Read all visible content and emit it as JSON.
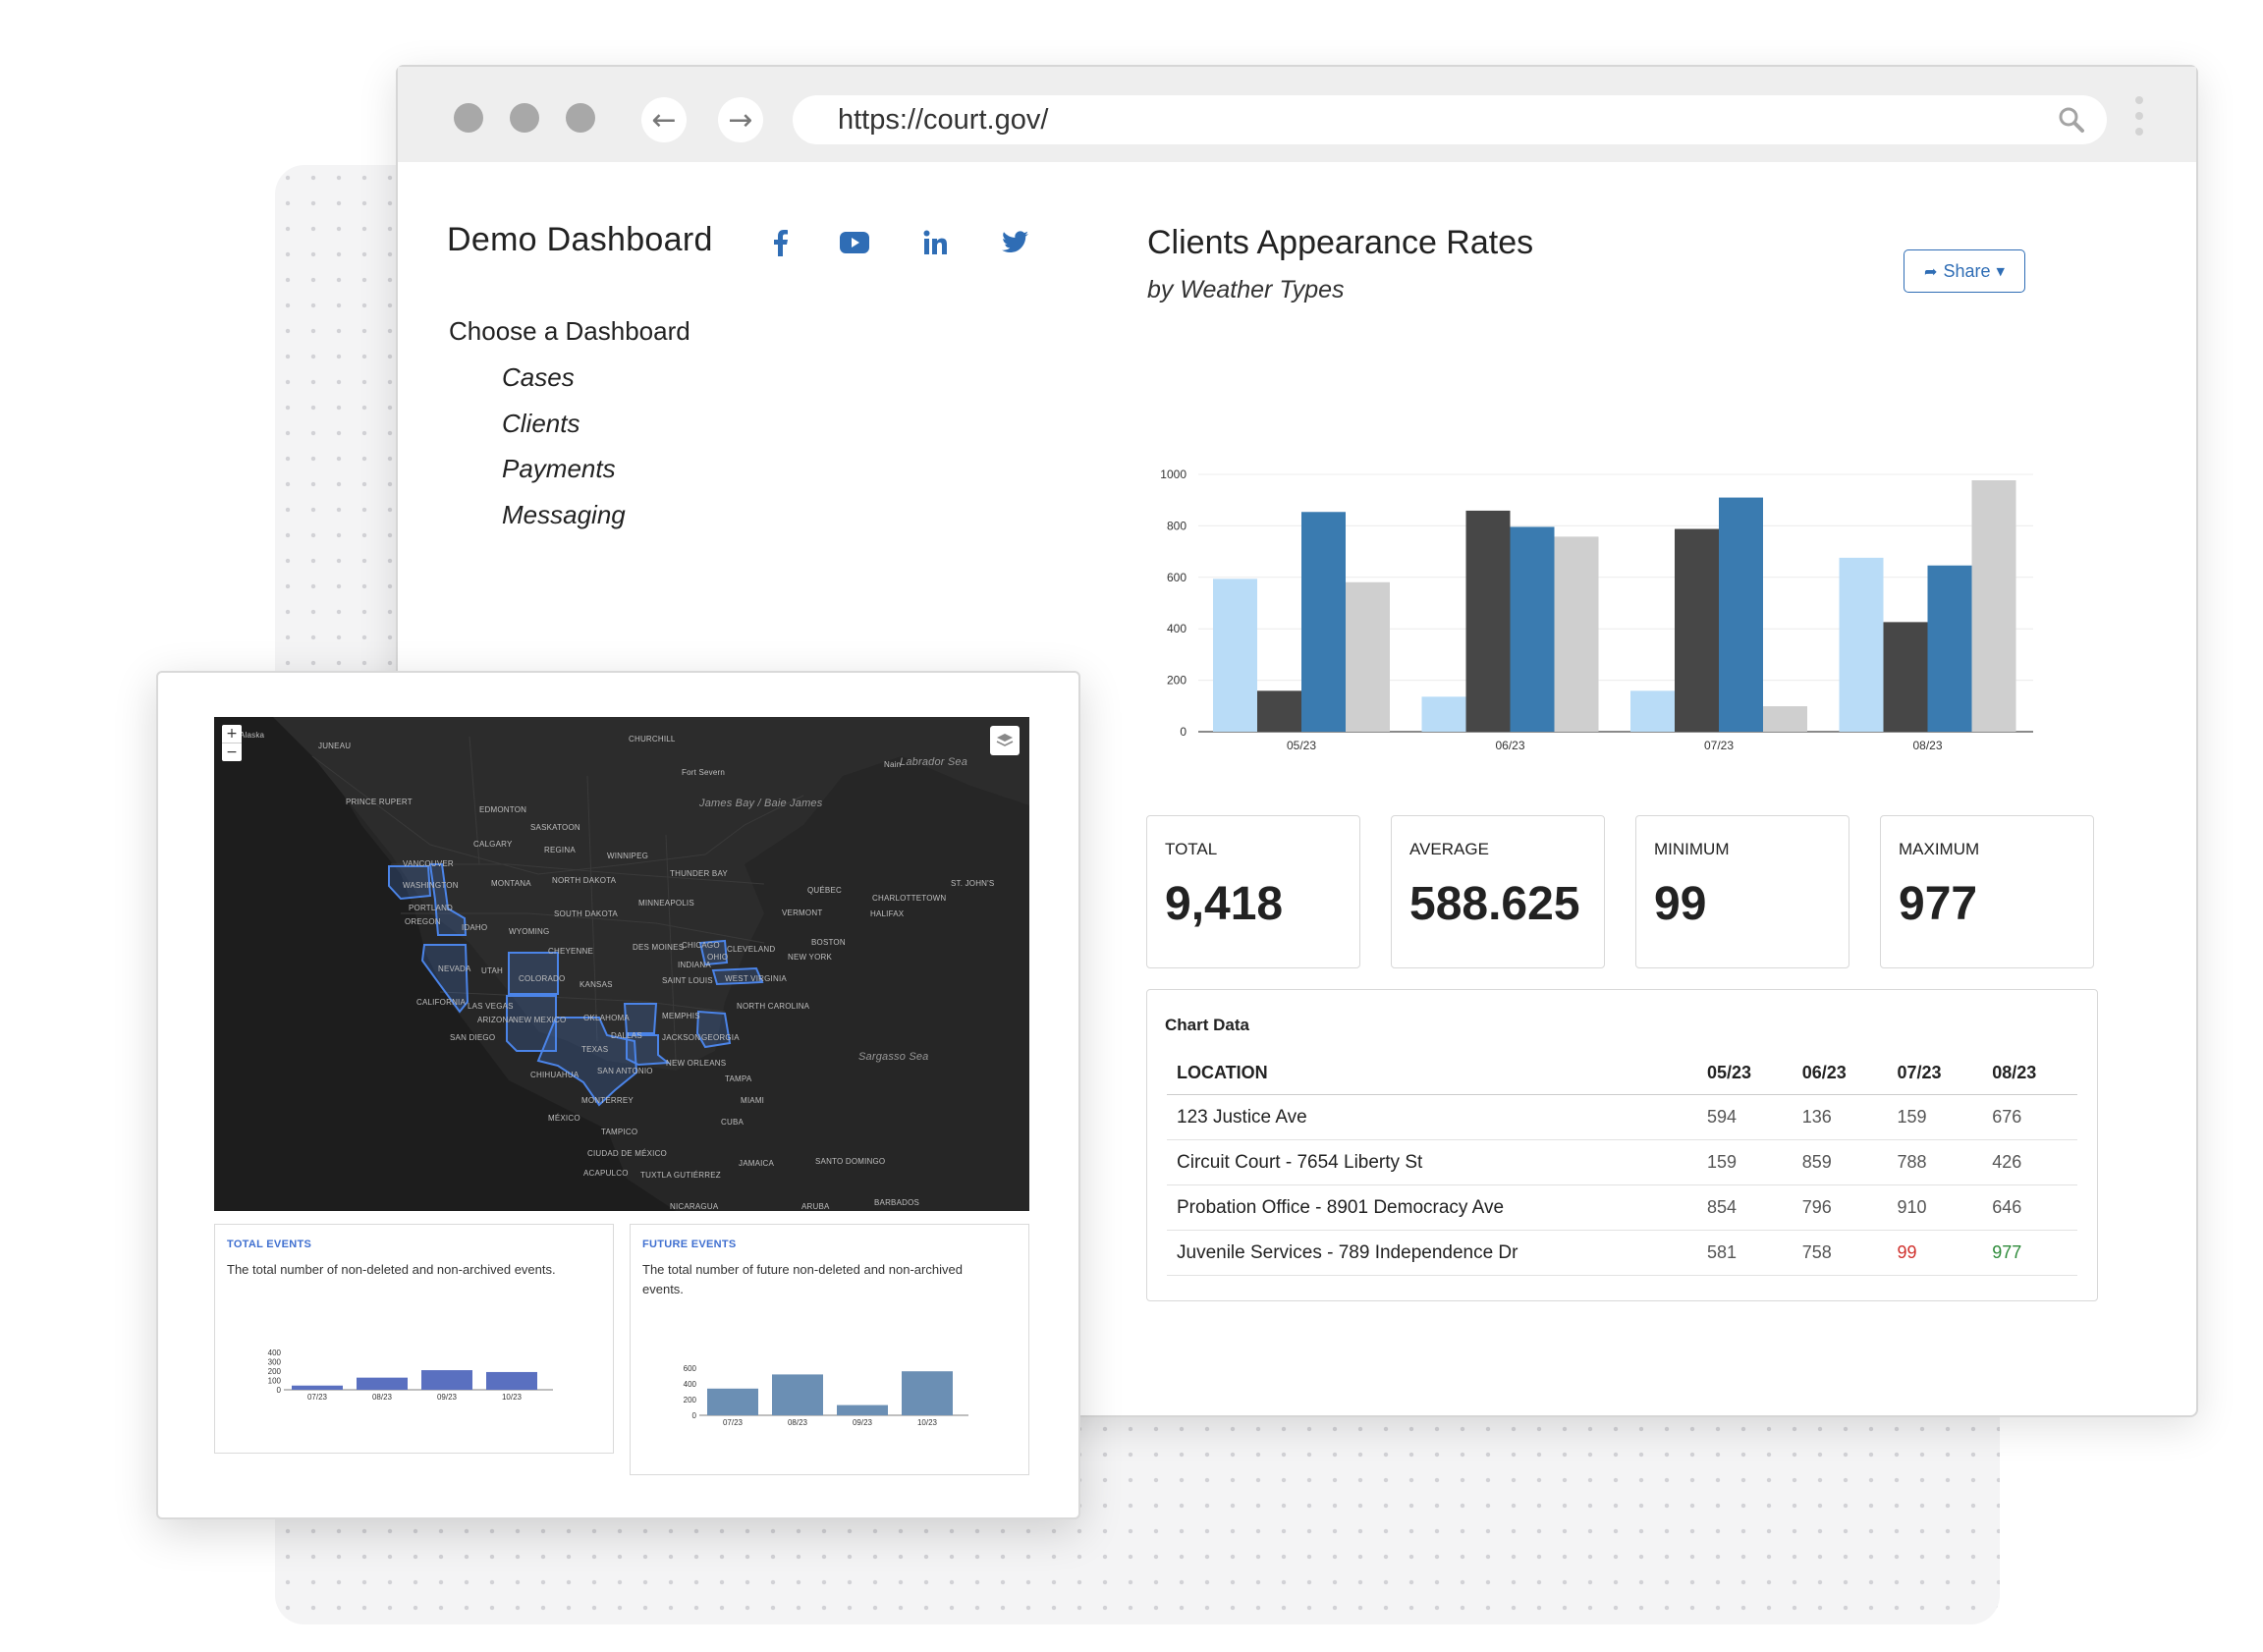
{
  "browser": {
    "url": "https://court.gov/"
  },
  "sidebar": {
    "title": "Demo Dashboard",
    "social": [
      "facebook-icon",
      "youtube-icon",
      "linkedin-icon",
      "twitter-icon"
    ],
    "choose_label": "Choose a Dashboard",
    "items": [
      {
        "label": "Cases"
      },
      {
        "label": "Clients"
      },
      {
        "label": "Payments"
      },
      {
        "label": "Messaging"
      }
    ]
  },
  "chart_header": {
    "title": "Clients Appearance Rates",
    "subtitle": "by Weather Types",
    "share_label": "Share"
  },
  "colors": {
    "series": [
      "#b9dcf7",
      "#474747",
      "#3a7bb0",
      "#cfcfcf"
    ],
    "accent": "#2f6db5",
    "min": "#d0312d",
    "max": "#2e8b3a",
    "map_bg": "#262626",
    "map_highlight": "#4b84e8",
    "mini1_bar": "#5a70c0",
    "mini2_bar": "#6b8fb4"
  },
  "chart_data": [
    {
      "type": "bar",
      "categories": [
        "05/23",
        "06/23",
        "07/23",
        "08/23"
      ],
      "series": [
        {
          "values": [
            594,
            136,
            159,
            676
          ]
        },
        {
          "values": [
            159,
            859,
            788,
            426
          ]
        },
        {
          "values": [
            854,
            796,
            910,
            646
          ]
        },
        {
          "values": [
            581,
            758,
            99,
            977
          ]
        }
      ],
      "ylim": [
        0,
        1000
      ],
      "yticks": [
        0,
        200,
        400,
        600,
        800,
        1000
      ],
      "grid": true
    },
    {
      "type": "bar",
      "categories": [
        "07/23",
        "08/23",
        "09/23",
        "10/23"
      ],
      "values": [
        45,
        130,
        210,
        190
      ],
      "ylim": [
        0,
        400
      ],
      "yticks": [
        0,
        100,
        200,
        300,
        400
      ]
    },
    {
      "type": "bar",
      "categories": [
        "07/23",
        "08/23",
        "09/23",
        "10/23"
      ],
      "values": [
        340,
        520,
        130,
        560
      ],
      "ylim": [
        0,
        600
      ],
      "yticks": [
        0,
        200,
        400,
        600
      ]
    }
  ],
  "stats": [
    {
      "label": "TOTAL",
      "value": "9,418"
    },
    {
      "label": "AVERAGE",
      "value": "588.625"
    },
    {
      "label": "MINIMUM",
      "value": "99"
    },
    {
      "label": "MAXIMUM",
      "value": "977"
    }
  ],
  "table": {
    "title": "Chart Data",
    "headers": [
      "LOCATION",
      "05/23",
      "06/23",
      "07/23",
      "08/23"
    ],
    "rows": [
      [
        "123 Justice Ave",
        "594",
        "136",
        "159",
        "676"
      ],
      [
        "Circuit Court - 7654 Liberty St",
        "159",
        "859",
        "788",
        "426"
      ],
      [
        "Probation Office - 8901 Democracy Ave",
        "854",
        "796",
        "910",
        "646"
      ],
      [
        "Juvenile Services - 789 Independence Dr",
        "581",
        "758",
        "99",
        "977"
      ]
    ],
    "min_value": "99",
    "max_value": "977"
  },
  "map": {
    "zoom_in": "+",
    "zoom_out": "−",
    "labels": [
      "Labrador Sea",
      "James Bay / Baie James",
      "Sargasso Sea",
      "EDMONTON",
      "SASKATOON",
      "CALGARY",
      "REGINA",
      "WINNIPEG",
      "THUNDER BAY",
      "VANCOUVER",
      "WASHINGTON",
      "MONTANA",
      "NORTH DAKOTA",
      "MINNEAPOLIS",
      "QUÉBEC",
      "ST. JOHN'S",
      "CHARLOTTETOWN",
      "HALIFAX",
      "VERMONT",
      "NEW YORK",
      "BOSTON",
      "PORTLAND",
      "OREGON",
      "IDAHO",
      "WYOMING",
      "SOUTH DAKOTA",
      "DES MOINES",
      "CHICAGO",
      "OHIO",
      "CLEVELAND",
      "NEVADA",
      "UTAH",
      "CHEYENNE",
      "COLORADO",
      "KANSAS",
      "SAINT LOUIS",
      "INDIANA",
      "WEST VIRGINIA",
      "CALIFORNIA",
      "LAS VEGAS",
      "ARIZONA",
      "NEW MEXICO",
      "OKLAHOMA",
      "MEMPHIS",
      "NORTH CAROLINA",
      "SAN DIEGO",
      "TEXAS",
      "DALLAS",
      "JACKSON",
      "GEORGIA",
      "NEW ORLEANS",
      "TAMPA",
      "MIAMI",
      "CHIHUAHUA",
      "SAN ANTONIO",
      "MONTERREY",
      "MÉXICO",
      "TAMPICO",
      "CUBA",
      "CIUDAD DE MÉXICO",
      "ACAPULCO",
      "TUXTLA GUTIÉRREZ",
      "JAMAICA",
      "SANTO DOMINGO",
      "NICARAGUA",
      "ARUBA",
      "BARBADOS",
      "PRINCE RUPERT",
      "JUNEAU",
      "CHURCHILL",
      "Fort Severn",
      "Nain",
      "Alaska"
    ]
  },
  "mini_cards": [
    {
      "title": "TOTAL EVENTS",
      "description": "The total number of non-deleted and non-archived events."
    },
    {
      "title": "FUTURE EVENTS",
      "description": "The total number of future non-deleted and non-archived events."
    }
  ]
}
